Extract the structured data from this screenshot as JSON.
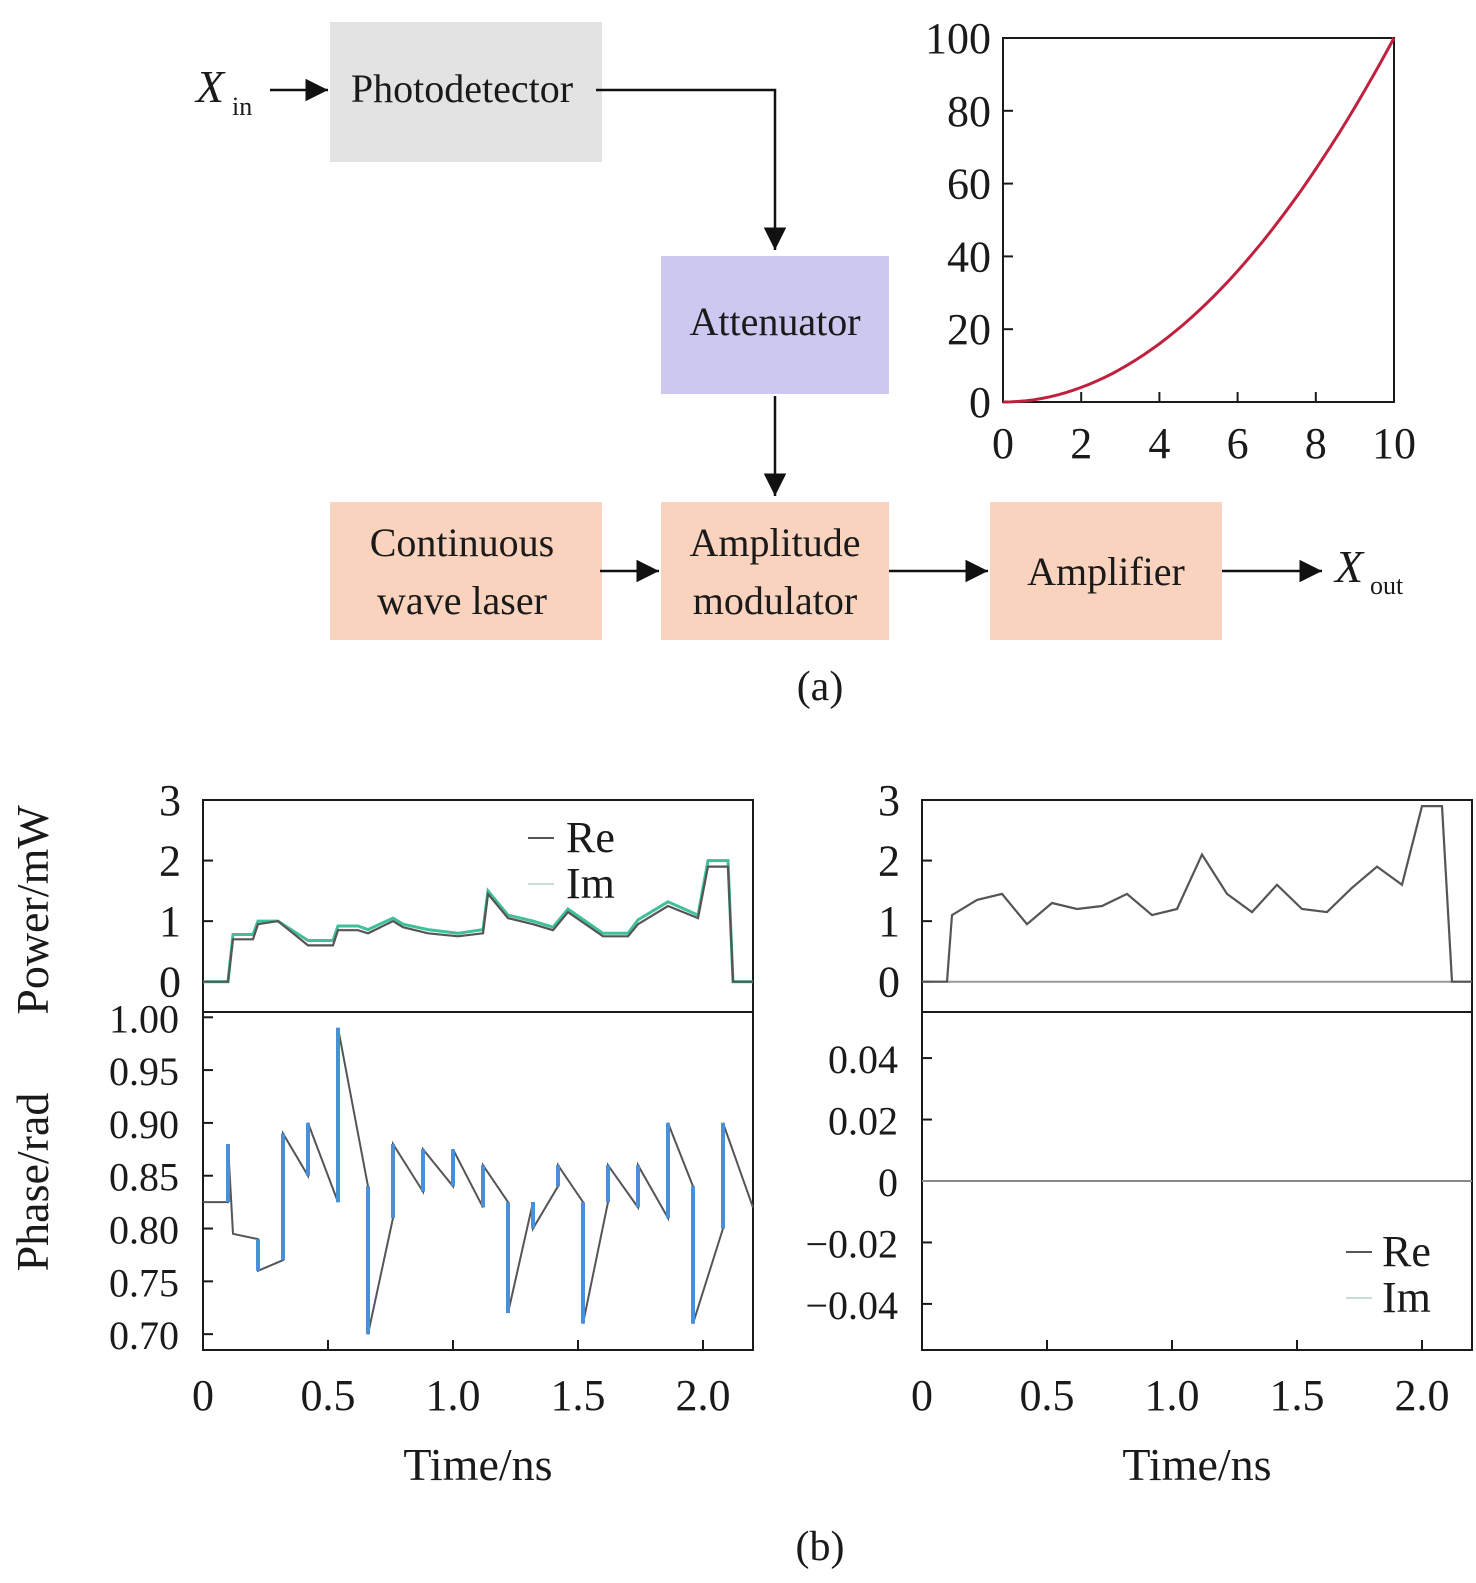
{
  "diagram_a": {
    "input_label": "X",
    "input_sub": "in",
    "output_label": "X",
    "output_sub": "out",
    "blocks": {
      "photodetector": "Photodetector",
      "attenuator": "Attenuator",
      "laser_line1": "Continuous",
      "laser_line2": "wave laser",
      "modulator_line1": "Amplitude",
      "modulator_line2": "modulator",
      "amplifier": "Amplifier"
    },
    "colors": {
      "photodetector": "#e3e3e3",
      "attenuator": "#cdc8ef",
      "laser": "#f9d3bd",
      "modulator": "#f9d3bd",
      "amplifier": "#f9d3bd",
      "curve": "#c0213f"
    },
    "caption": "(a)"
  },
  "caption_b": "(b)",
  "chart_data": [
    {
      "type": "line",
      "id": "transfer",
      "title": "",
      "xlabel": "",
      "ylabel": "",
      "xlim": [
        0,
        10
      ],
      "ylim": [
        0,
        100
      ],
      "xticks": [
        "0",
        "2",
        "4",
        "6",
        "8",
        "10"
      ],
      "yticks": [
        "0",
        "20",
        "40",
        "60",
        "80",
        "100"
      ],
      "series": [
        {
          "x": [
            0,
            1,
            2,
            3,
            4,
            5,
            6,
            7,
            8,
            9,
            10
          ],
          "y": [
            0,
            1,
            4,
            9,
            16,
            25,
            36,
            49,
            64,
            81,
            100
          ]
        }
      ]
    },
    {
      "type": "line",
      "id": "power_left",
      "ylabel": "Power/mW",
      "xlim": [
        0,
        2.2
      ],
      "ylim": [
        -0.5,
        3
      ],
      "yticks": [
        "0",
        "1",
        "2",
        "3"
      ],
      "legend": [
        "Re",
        "Im"
      ],
      "legend_position": "top-right",
      "series": [
        {
          "name": "Re",
          "x": [
            0,
            0.1,
            0.12,
            0.2,
            0.22,
            0.3,
            0.42,
            0.52,
            0.54,
            0.62,
            0.66,
            0.76,
            0.8,
            0.9,
            1.02,
            1.12,
            1.14,
            1.22,
            1.32,
            1.4,
            1.46,
            1.6,
            1.7,
            1.74,
            1.82,
            1.86,
            1.98,
            2.02,
            2.1,
            2.12,
            2.2
          ],
          "y": [
            0,
            0,
            0.7,
            0.7,
            0.95,
            1.0,
            0.6,
            0.6,
            0.85,
            0.85,
            0.8,
            1.0,
            0.9,
            0.8,
            0.75,
            0.8,
            1.45,
            1.05,
            0.95,
            0.85,
            1.15,
            0.75,
            0.75,
            0.95,
            1.15,
            1.25,
            1.05,
            1.9,
            1.9,
            0,
            0
          ]
        },
        {
          "name": "Im",
          "x": [
            0,
            0.1,
            0.12,
            0.2,
            0.22,
            0.3,
            0.42,
            0.52,
            0.54,
            0.62,
            0.66,
            0.76,
            0.8,
            0.9,
            1.02,
            1.12,
            1.14,
            1.22,
            1.32,
            1.4,
            1.46,
            1.6,
            1.7,
            1.74,
            1.82,
            1.86,
            1.98,
            2.02,
            2.1,
            2.12,
            2.2
          ],
          "y": [
            0,
            0,
            0.78,
            0.78,
            1.0,
            1.0,
            0.68,
            0.68,
            0.92,
            0.92,
            0.86,
            1.05,
            0.95,
            0.86,
            0.8,
            0.86,
            1.5,
            1.1,
            1.0,
            0.9,
            1.2,
            0.8,
            0.8,
            1.02,
            1.22,
            1.32,
            1.1,
            2.0,
            2.0,
            0,
            0
          ]
        }
      ]
    },
    {
      "type": "line",
      "id": "phase_left",
      "ylabel": "Phase/rad",
      "xlabel": "Time/ns",
      "xlim": [
        0,
        2.2
      ],
      "ylim": [
        0.685,
        1.005
      ],
      "xticks": [
        "0",
        "0.5",
        "1.0",
        "1.5",
        "2.0"
      ],
      "yticks": [
        "0.70",
        "0.75",
        "0.80",
        "0.85",
        "0.90",
        "0.95",
        "1.00"
      ],
      "series": [
        {
          "name": "Re",
          "x": [
            0,
            0.1,
            0.1,
            0.12,
            0.12,
            0.22,
            0.22,
            0.32,
            0.32,
            0.42,
            0.42,
            0.54,
            0.54,
            0.66,
            0.66,
            0.76,
            0.76,
            0.88,
            0.88,
            1.0,
            1.0,
            1.12,
            1.12,
            1.22,
            1.22,
            1.32,
            1.32,
            1.42,
            1.42,
            1.52,
            1.52,
            1.62,
            1.62,
            1.74,
            1.74,
            1.86,
            1.86,
            1.96,
            1.96,
            2.08,
            2.08,
            2.2
          ],
          "y": [
            0.825,
            0.825,
            0.88,
            0.795,
            0.795,
            0.79,
            0.76,
            0.77,
            0.89,
            0.85,
            0.9,
            0.825,
            0.99,
            0.84,
            0.7,
            0.81,
            0.88,
            0.835,
            0.875,
            0.84,
            0.875,
            0.82,
            0.86,
            0.825,
            0.72,
            0.825,
            0.8,
            0.84,
            0.86,
            0.825,
            0.71,
            0.825,
            0.86,
            0.82,
            0.86,
            0.81,
            0.9,
            0.84,
            0.71,
            0.8,
            0.9,
            0.82
          ]
        }
      ]
    },
    {
      "type": "line",
      "id": "power_right",
      "xlim": [
        0,
        2.2
      ],
      "ylim": [
        -0.5,
        3
      ],
      "yticks": [
        "0",
        "1",
        "2",
        "3"
      ],
      "series": [
        {
          "name": "Re",
          "x": [
            0,
            0.1,
            0.12,
            0.22,
            0.32,
            0.42,
            0.52,
            0.62,
            0.72,
            0.82,
            0.92,
            1.02,
            1.12,
            1.22,
            1.32,
            1.42,
            1.52,
            1.62,
            1.72,
            1.82,
            1.92,
            2.0,
            2.08,
            2.12,
            2.2
          ],
          "y": [
            0,
            0,
            1.1,
            1.35,
            1.45,
            0.95,
            1.3,
            1.2,
            1.25,
            1.45,
            1.1,
            1.2,
            2.1,
            1.45,
            1.15,
            1.6,
            1.2,
            1.15,
            1.55,
            1.9,
            1.6,
            2.9,
            2.9,
            0,
            0
          ]
        },
        {
          "name": "Im",
          "x": [
            0,
            2.2
          ],
          "y": [
            0,
            0
          ]
        }
      ]
    },
    {
      "type": "line",
      "id": "phase_right",
      "xlabel": "Time/ns",
      "xlim": [
        0,
        2.2
      ],
      "ylim": [
        -0.055,
        0.055
      ],
      "xticks": [
        "0",
        "0.5",
        "1.0",
        "1.5",
        "2.0"
      ],
      "yticks": [
        "−0.04",
        "−0.02",
        "0",
        "0.02",
        "0.04"
      ],
      "legend": [
        "Re",
        "Im"
      ],
      "legend_position": "bottom-right",
      "series": [
        {
          "name": "Re",
          "x": [
            0,
            2.2
          ],
          "y": [
            0,
            0
          ]
        },
        {
          "name": "Im",
          "x": [
            0,
            2.2
          ],
          "y": [
            0,
            0
          ]
        }
      ]
    }
  ]
}
